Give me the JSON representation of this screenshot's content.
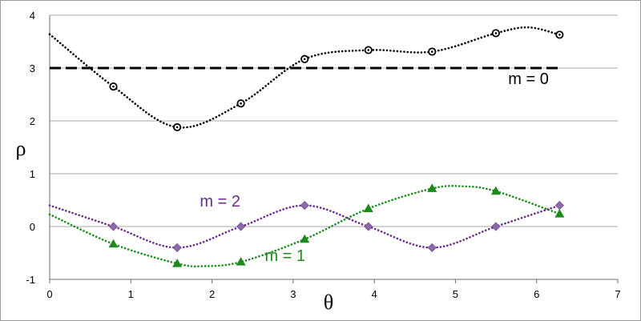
{
  "chart_data": {
    "type": "scatter",
    "xlabel": "θ",
    "ylabel": "ρ",
    "xlim": [
      0,
      7
    ],
    "ylim": [
      -1,
      4
    ],
    "xticks": [
      0,
      1,
      2,
      3,
      4,
      5,
      6,
      7
    ],
    "yticks": [
      -1,
      0,
      1,
      2,
      3,
      4
    ],
    "grid": "horizontal",
    "series": [
      {
        "name": "m = 0",
        "color": "#000000",
        "marker": "ring",
        "points": [
          [
            0.785,
            2.65
          ],
          [
            1.571,
            1.88
          ],
          [
            2.356,
            2.33
          ],
          [
            3.142,
            3.17
          ],
          [
            3.927,
            3.34
          ],
          [
            4.712,
            3.31
          ],
          [
            5.498,
            3.66
          ],
          [
            6.283,
            3.63
          ]
        ],
        "curve": [
          [
            0,
            3.64
          ],
          [
            0.785,
            2.65
          ],
          [
            1.571,
            1.88
          ],
          [
            2.356,
            2.33
          ],
          [
            3.142,
            3.17
          ],
          [
            3.927,
            3.34
          ],
          [
            4.712,
            3.31
          ],
          [
            5.498,
            3.66
          ],
          [
            5.9,
            3.77
          ],
          [
            6.283,
            3.63
          ]
        ]
      },
      {
        "name": "m = 2",
        "color": "#6b2a8c",
        "marker": "diamond",
        "points": [
          [
            0.785,
            0.0
          ],
          [
            1.571,
            -0.4
          ],
          [
            2.356,
            0.0
          ],
          [
            3.142,
            0.4
          ],
          [
            3.927,
            0.0
          ],
          [
            4.712,
            -0.4
          ],
          [
            5.498,
            0.0
          ],
          [
            6.283,
            0.4
          ]
        ],
        "curve": [
          [
            0,
            0.4
          ],
          [
            0.785,
            0.0
          ],
          [
            1.571,
            -0.4
          ],
          [
            2.356,
            0.0
          ],
          [
            3.142,
            0.4
          ],
          [
            3.927,
            0.0
          ],
          [
            4.712,
            -0.4
          ],
          [
            5.498,
            0.0
          ],
          [
            6.283,
            0.4
          ]
        ]
      },
      {
        "name": "m = 1",
        "color": "#1e8a1e",
        "marker": "triangle",
        "points": [
          [
            0.785,
            -0.33
          ],
          [
            1.571,
            -0.7
          ],
          [
            2.356,
            -0.67
          ],
          [
            3.142,
            -0.24
          ],
          [
            3.927,
            0.34
          ],
          [
            4.712,
            0.72
          ],
          [
            5.498,
            0.67
          ],
          [
            6.283,
            0.24
          ]
        ],
        "curve": [
          [
            0,
            0.23
          ],
          [
            0.785,
            -0.33
          ],
          [
            1.571,
            -0.7
          ],
          [
            1.9,
            -0.75
          ],
          [
            2.356,
            -0.67
          ],
          [
            3.142,
            -0.24
          ],
          [
            3.927,
            0.34
          ],
          [
            4.712,
            0.72
          ],
          [
            5.1,
            0.76
          ],
          [
            5.498,
            0.67
          ],
          [
            6.283,
            0.24
          ]
        ]
      }
    ],
    "reference_line": {
      "y": 3,
      "x_range": [
        0,
        6.283
      ],
      "style": "dashed",
      "color": "#000000"
    },
    "labels": [
      {
        "series": "m = 0",
        "text": "m = 0",
        "x": 5.9,
        "y": 2.7
      },
      {
        "series": "m = 2",
        "text": "m = 2",
        "x": 2.1,
        "y": 0.38
      },
      {
        "series": "m = 1",
        "text": "m = 1",
        "x": 2.9,
        "y": -0.65
      }
    ]
  }
}
